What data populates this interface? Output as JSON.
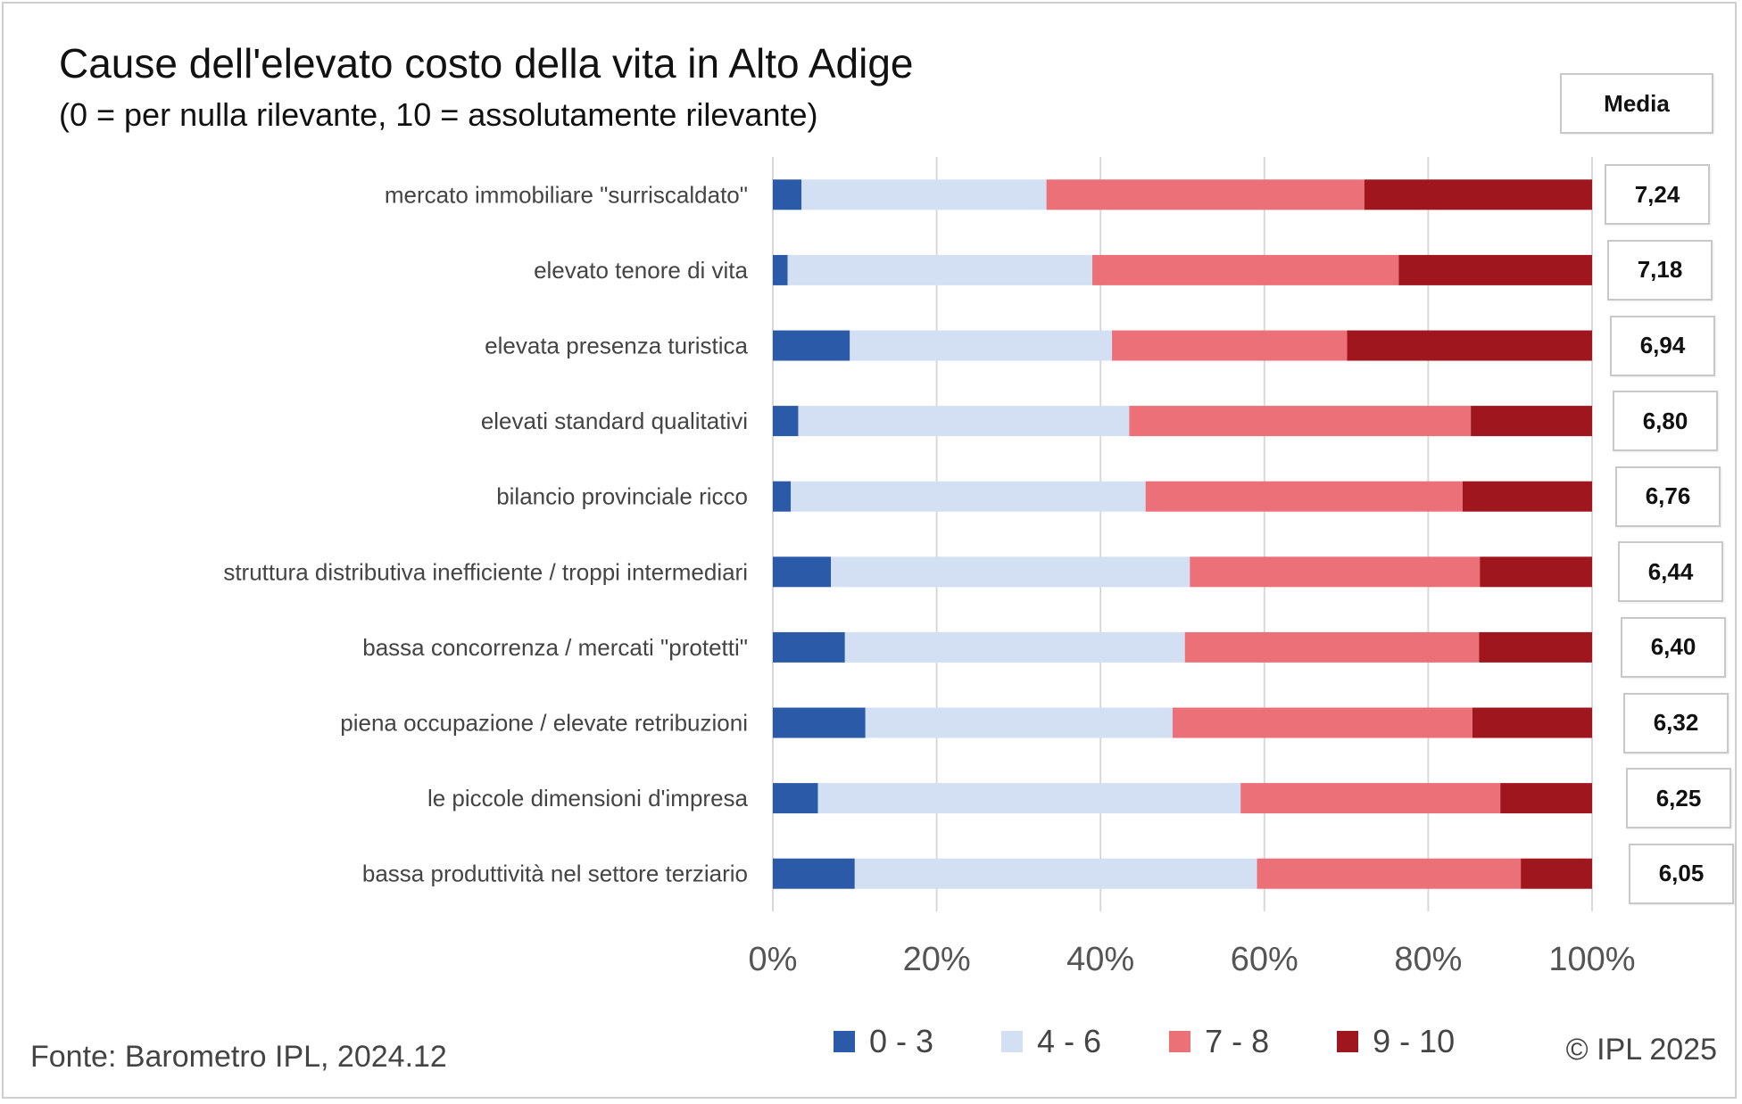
{
  "chart_data": {
    "type": "bar",
    "orientation": "horizontal",
    "stacked": "percent",
    "title": "Cause dell'elevato costo della vita in Alto Adige",
    "subtitle": "(0 = per nulla rilevante, 10 = assolutamente rilevante)",
    "categories": [
      "mercato immobiliare \"surriscaldato\"",
      "elevato tenore di vita",
      "elevata presenza turistica",
      "elevati standard qualitativi",
      "bilancio provinciale ricco",
      "struttura distributiva inefficiente / troppi intermediari",
      "bassa concorrenza / mercati \"protetti\"",
      "piena occupazione / elevate retribuzioni",
      "le piccole dimensioni d'impresa",
      "bassa produttività nel settore terziario"
    ],
    "series": [
      {
        "name": "0 - 3",
        "color": "#2b5aa8",
        "values": [
          3.5,
          1.8,
          9.4,
          3.1,
          2.2,
          7.1,
          8.8,
          11.3,
          5.5,
          10.0
        ]
      },
      {
        "name": "4 - 6",
        "color": "#d3e0f3",
        "values": [
          29.9,
          37.2,
          32.0,
          40.4,
          43.3,
          43.8,
          41.5,
          37.5,
          51.6,
          49.1
        ]
      },
      {
        "name": "7 - 8",
        "color": "#eb7077",
        "values": [
          38.8,
          37.4,
          28.7,
          41.7,
          38.7,
          35.4,
          35.9,
          36.6,
          31.7,
          32.2
        ]
      },
      {
        "name": "9 - 10",
        "color": "#a0161e",
        "values": [
          27.8,
          23.6,
          29.9,
          14.8,
          15.8,
          13.7,
          13.8,
          14.6,
          11.2,
          8.7
        ]
      }
    ],
    "x_ticks": [
      "0%",
      "20%",
      "40%",
      "60%",
      "80%",
      "100%"
    ],
    "xlim": [
      0,
      100
    ],
    "grid": true,
    "legend_position": "bottom",
    "mean_header": "Media",
    "means": [
      "7,24",
      "7,18",
      "6,94",
      "6,80",
      "6,76",
      "6,44",
      "6,40",
      "6,32",
      "6,25",
      "6,05"
    ]
  },
  "footer": {
    "source": "Fonte: Barometro IPL, 2024.12",
    "copyright": "© IPL 2025"
  }
}
